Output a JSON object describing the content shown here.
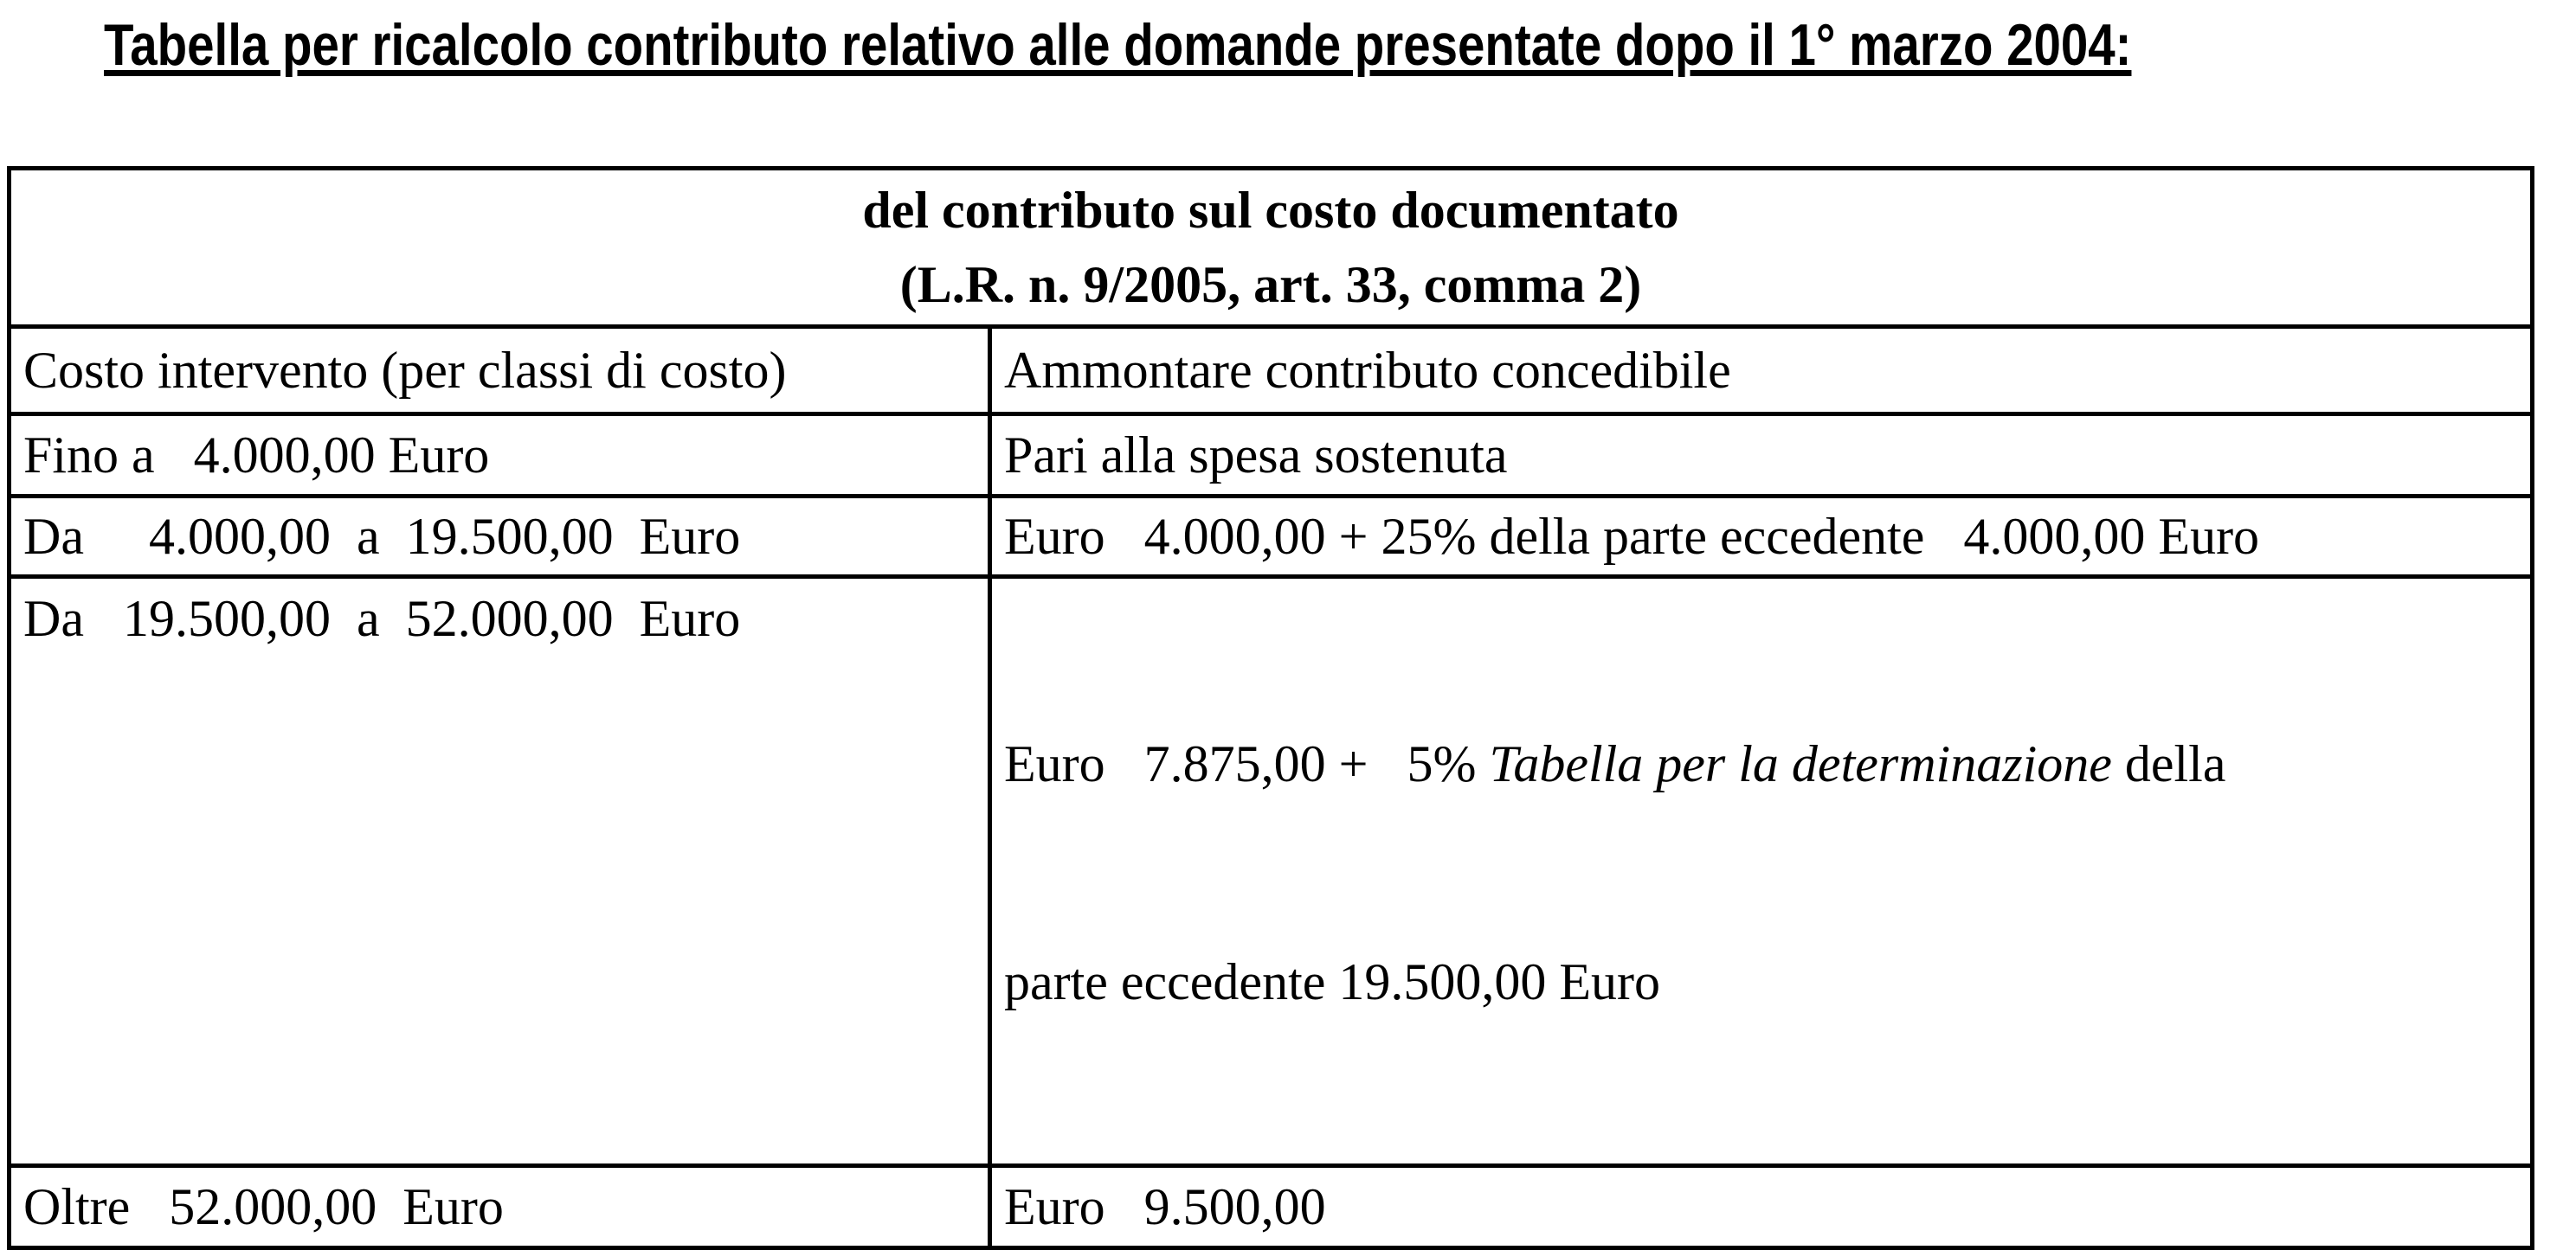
{
  "title": "Tabella per ricalcolo contributo relativo alle domande presentate dopo il 1° marzo 2004:",
  "table": {
    "header_line1": "del contributo sul costo documentato",
    "header_line2": "(L.R. n. 9/2005, art. 33, comma 2)",
    "col_headers": [
      "Costo intervento (per classi di costo)",
      "Ammontare contributo concedibile"
    ],
    "rows": [
      {
        "cost": "Fino a   4.000,00 Euro",
        "amount": "Pari alla spesa sostenuta"
      },
      {
        "cost": "Da     4.000,00  a  19.500,00  Euro",
        "amount": "Euro   4.000,00 + 25% della parte eccedente   4.000,00 Euro"
      },
      {
        "cost": "Da   19.500,00  a  52.000,00  Euro",
        "amount_pre": "Euro   7.875,00 +   5% ",
        "amount_italic": "Tabella per la determinazione",
        "amount_post": " della",
        "amount_line2": "parte eccedente 19.500,00 Euro"
      },
      {
        "cost": "Oltre   52.000,00  Euro",
        "amount": "Euro   9.500,00"
      }
    ]
  }
}
